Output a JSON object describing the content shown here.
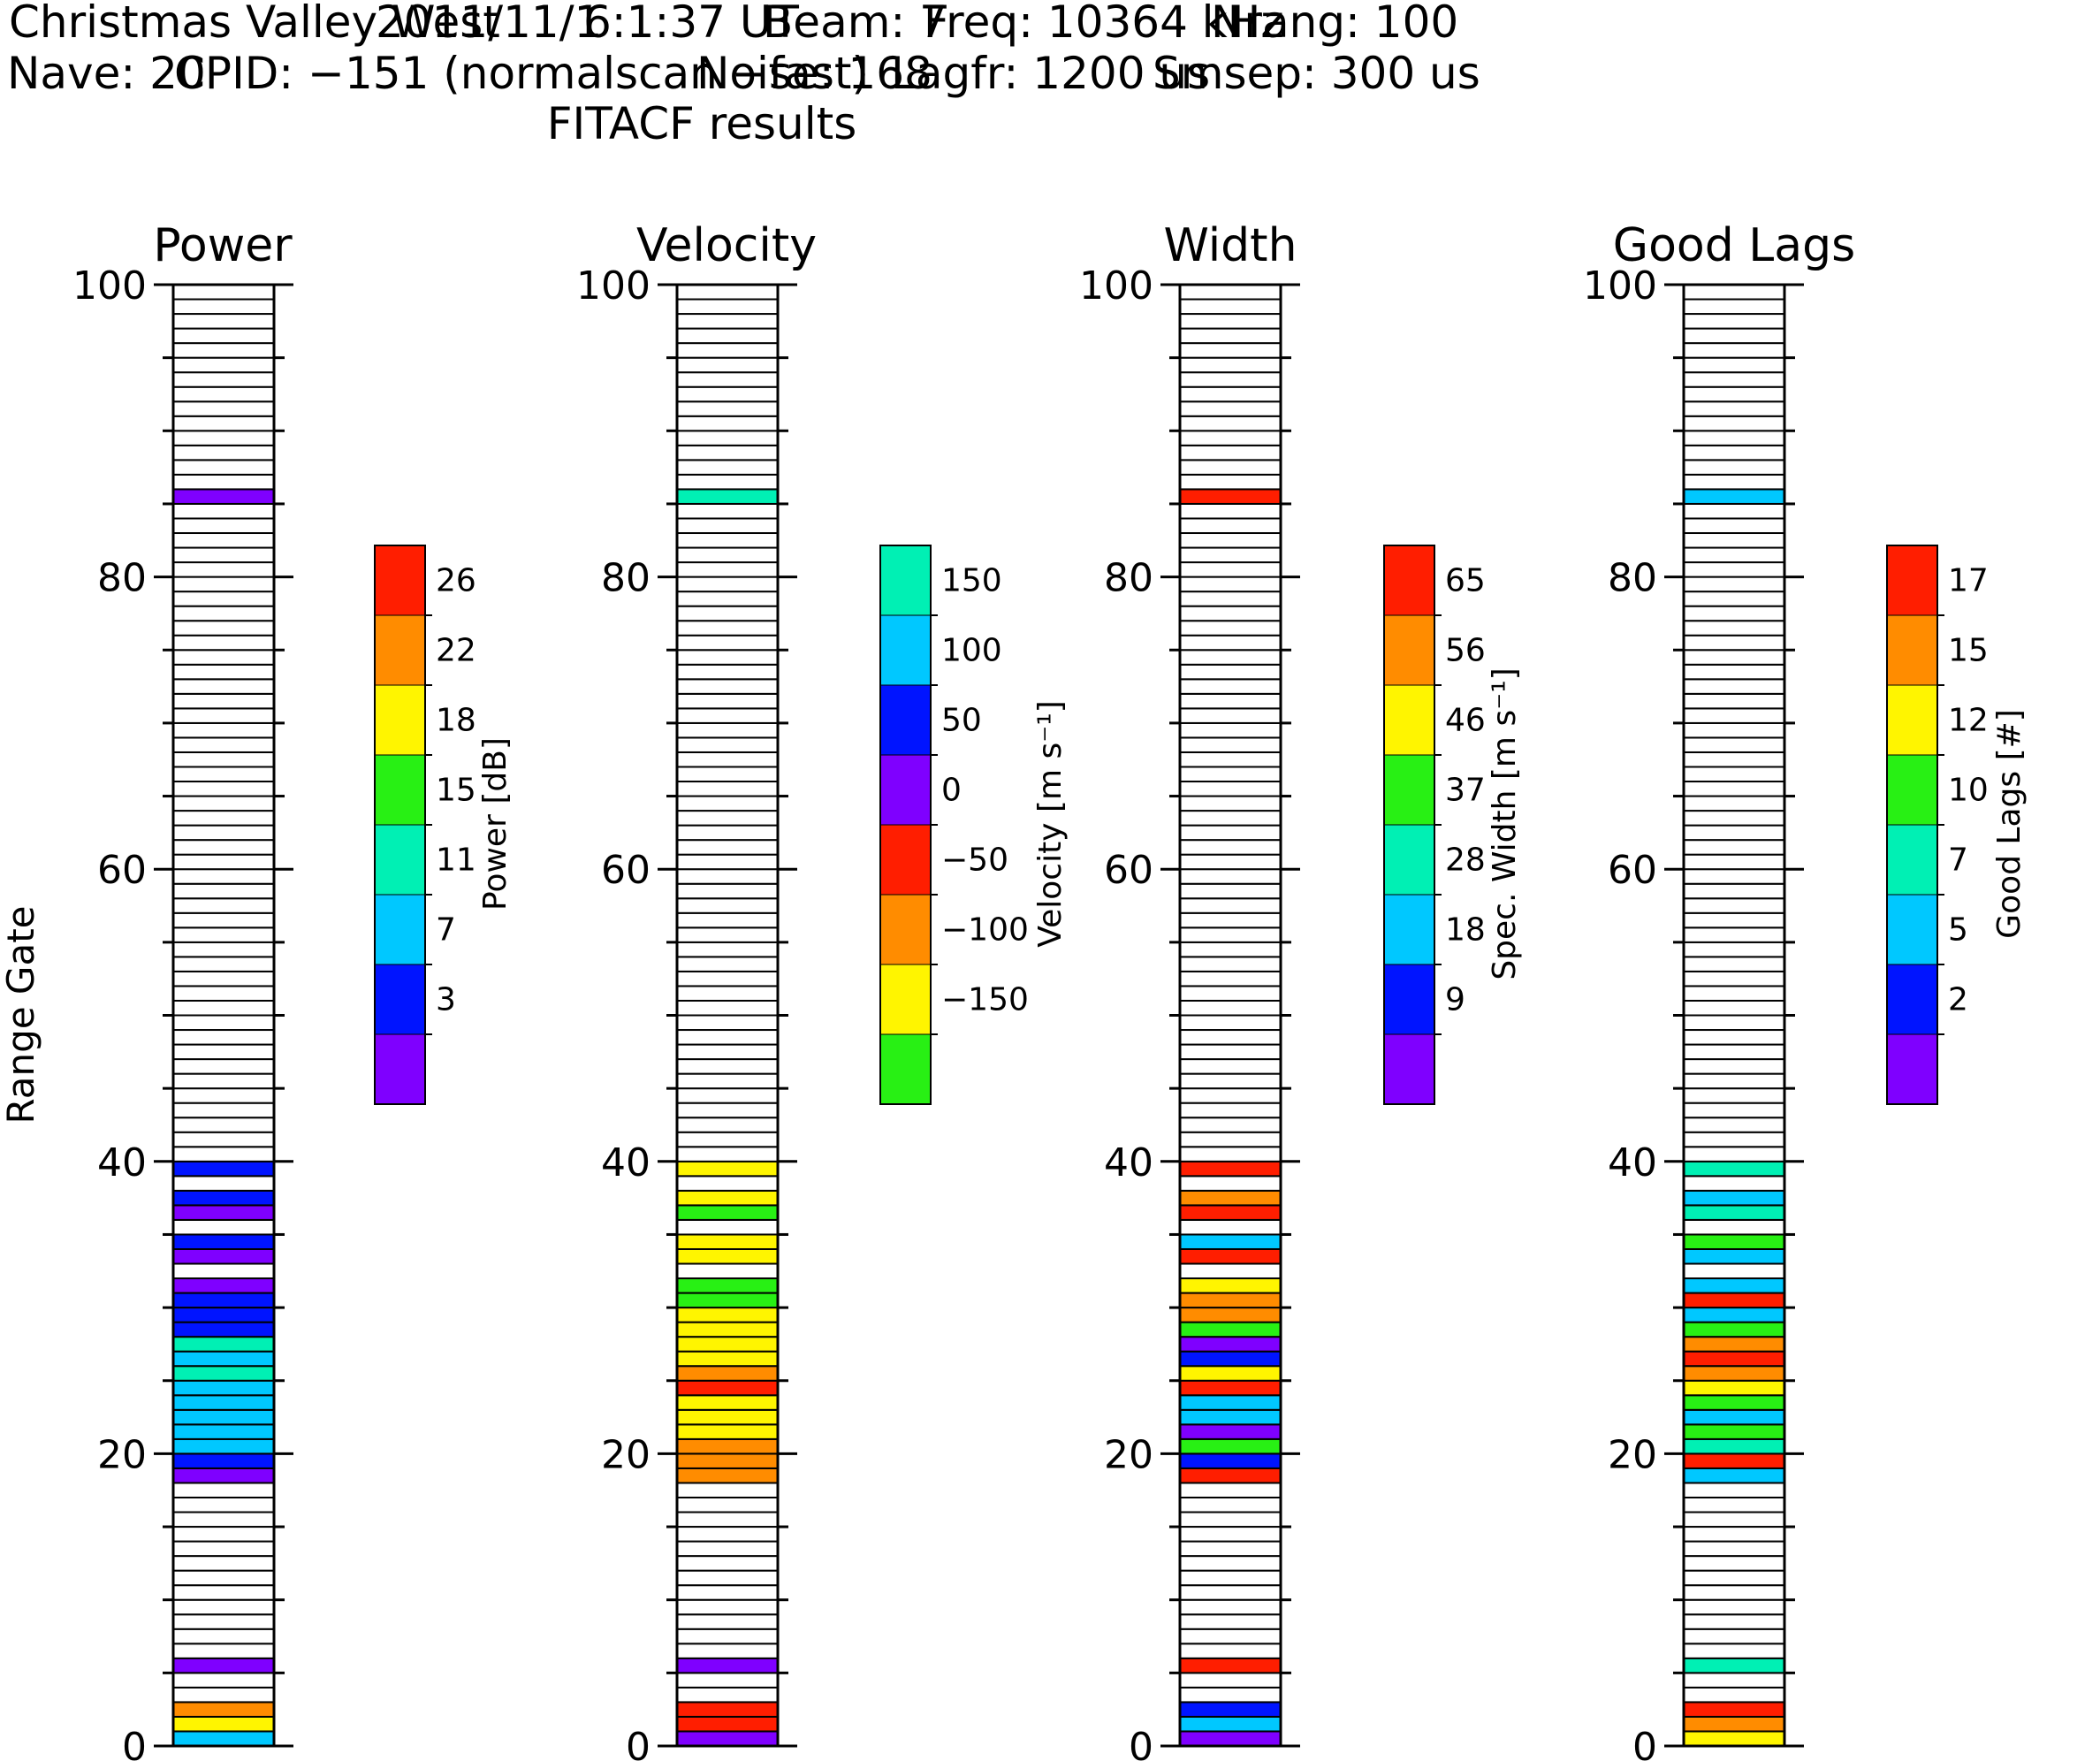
{
  "header": {
    "line1": [
      "Christmas Valley West",
      "2011/11/1",
      "6:1:37 UT",
      "Beam: 7",
      "Freq: 10364 kHz",
      "Nrang: 100"
    ],
    "line2": [
      "Nave: 20",
      "CPID: −151 (normalscan −fast)",
      "Noise: 168",
      "Lagfr: 1200 us",
      "Smsep: 300 us"
    ],
    "subtitle": "FITACF results"
  },
  "chart_data": {
    "type": "range-gate column plot",
    "ylabel": "Range Gate",
    "ylim": [
      0,
      100
    ],
    "yticks": [
      0,
      20,
      40,
      60,
      80,
      100
    ],
    "palette": [
      "#7f00ff",
      "#0014ff",
      "#00c8ff",
      "#00f0b4",
      "#28f014",
      "#fff500",
      "#ff8c00",
      "#ff1e00"
    ],
    "panels": [
      {
        "title": "Power",
        "colorbar_label": "Power [dB]",
        "colorbar_ticks": [
          "3",
          "7",
          "11",
          "15",
          "18",
          "22",
          "26"
        ],
        "gates": {
          "85": 0,
          "39": 1,
          "37": 1,
          "36": 0,
          "34": 1,
          "33": 0,
          "31": 0,
          "30": 1,
          "29": 1,
          "28": 1,
          "27": 3,
          "26": 2,
          "25": 3,
          "24": 2,
          "23": 2,
          "22": 2,
          "21": 2,
          "20": 2,
          "19": 1,
          "18": 0,
          "5": 0,
          "2": 6,
          "1": 5,
          "0": 2
        }
      },
      {
        "title": "Velocity",
        "colorbar_label": "Velocity [m s⁻¹]",
        "colorbar_ticks": [
          "−150",
          "−100",
          "−50",
          "0",
          "50",
          "100",
          "150"
        ],
        "colorbar_order": [
          4,
          5,
          6,
          7,
          0,
          1,
          2,
          3
        ],
        "gates": {
          "85": 3,
          "39": 5,
          "37": 5,
          "36": 4,
          "34": 5,
          "33": 5,
          "31": 4,
          "30": 4,
          "29": 5,
          "28": 5,
          "27": 5,
          "26": 5,
          "25": 6,
          "24": 7,
          "23": 5,
          "22": 5,
          "21": 5,
          "20": 6,
          "19": 6,
          "18": 6,
          "5": 0,
          "2": 7,
          "1": 7,
          "0": 0
        }
      },
      {
        "title": "Width",
        "colorbar_label": "Spec. Width [m s⁻¹]",
        "colorbar_ticks": [
          "9",
          "18",
          "28",
          "37",
          "46",
          "56",
          "65"
        ],
        "gates": {
          "85": 7,
          "39": 7,
          "37": 6,
          "36": 7,
          "34": 2,
          "33": 7,
          "31": 5,
          "30": 6,
          "29": 6,
          "28": 4,
          "27": 0,
          "26": 1,
          "25": 5,
          "24": 7,
          "23": 2,
          "22": 2,
          "21": 0,
          "20": 4,
          "19": 1,
          "18": 7,
          "5": 7,
          "2": 1,
          "1": 2,
          "0": 0
        }
      },
      {
        "title": "Good Lags",
        "colorbar_label": "Good Lags [#]",
        "colorbar_ticks": [
          "2",
          "5",
          "7",
          "10",
          "12",
          "15",
          "17"
        ],
        "gates": {
          "85": 2,
          "39": 3,
          "37": 2,
          "36": 3,
          "34": 4,
          "33": 2,
          "31": 2,
          "30": 7,
          "29": 2,
          "28": 4,
          "27": 6,
          "26": 7,
          "25": 6,
          "24": 5,
          "23": 4,
          "22": 2,
          "21": 4,
          "20": 3,
          "19": 7,
          "18": 2,
          "5": 3,
          "2": 7,
          "1": 6,
          "0": 5
        }
      }
    ]
  }
}
